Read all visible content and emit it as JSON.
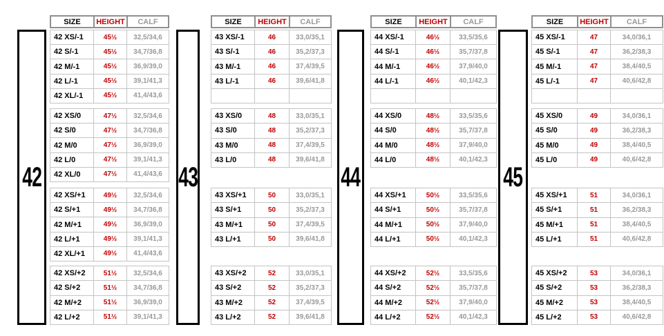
{
  "table_header": {
    "size": "SIZE",
    "height": "HEIGHT",
    "calf": "CALF"
  },
  "colors": {
    "height_text": "#c00000",
    "calf_text": "#999999",
    "cell_border": "#c3c3c3",
    "header_border": "#8f8f8f",
    "box_border": "#000000"
  },
  "blocks": [
    {
      "number": "42",
      "sections": [
        {
          "rows": [
            {
              "size": "42 XS/-1",
              "height": "45½",
              "calf": "32,5/34,6"
            },
            {
              "size": "42 S/-1",
              "height": "45½",
              "calf": "34,7/36,8"
            },
            {
              "size": "42 M/-1",
              "height": "45½",
              "calf": "36,9/39,0"
            },
            {
              "size": "42 L/-1",
              "height": "45½",
              "calf": "39,1/41,3"
            },
            {
              "size": "42 XL/-1",
              "height": "45½",
              "calf": "41,4/43,6"
            }
          ]
        },
        {
          "rows": [
            {
              "size": "42 XS/0",
              "height": "47½",
              "calf": "32,5/34,6"
            },
            {
              "size": "42 S/0",
              "height": "47½",
              "calf": "34,7/36,8"
            },
            {
              "size": "42 M/0",
              "height": "47½",
              "calf": "36,9/39,0"
            },
            {
              "size": "42 L/0",
              "height": "47½",
              "calf": "39,1/41,3"
            },
            {
              "size": "42 XL/0",
              "height": "47½",
              "calf": "41,4/43,6"
            }
          ]
        },
        {
          "rows": [
            {
              "size": "42 XS/+1",
              "height": "49½",
              "calf": "32,5/34,6"
            },
            {
              "size": "42 S/+1",
              "height": "49½",
              "calf": "34,7/36,8"
            },
            {
              "size": "42 M/+1",
              "height": "49½",
              "calf": "36,9/39,0"
            },
            {
              "size": "42 L/+1",
              "height": "49½",
              "calf": "39,1/41,3"
            },
            {
              "size": "42 XL/+1",
              "height": "49½",
              "calf": "41,4/43,6"
            }
          ]
        },
        {
          "rows": [
            {
              "size": "42 XS/+2",
              "height": "51½",
              "calf": "32,5/34,6"
            },
            {
              "size": "42 S/+2",
              "height": "51½",
              "calf": "34,7/36,8"
            },
            {
              "size": "42 M/+2",
              "height": "51½",
              "calf": "36,9/39,0"
            },
            {
              "size": "42 L/+2",
              "height": "51½",
              "calf": "39,1/41,3"
            }
          ]
        }
      ]
    },
    {
      "number": "43",
      "sections": [
        {
          "rows": [
            {
              "size": "43 XS/-1",
              "height": "46",
              "calf": "33,0/35,1"
            },
            {
              "size": "43 S/-1",
              "height": "46",
              "calf": "35,2/37,3"
            },
            {
              "size": "43 M/-1",
              "height": "46",
              "calf": "37,4/39,5"
            },
            {
              "size": "43 L/-1",
              "height": "46",
              "calf": "39,6/41,8"
            },
            {
              "size": "",
              "height": "",
              "calf": ""
            }
          ]
        },
        {
          "rows": [
            {
              "size": "43 XS/0",
              "height": "48",
              "calf": "33,0/35,1"
            },
            {
              "size": "43 S/0",
              "height": "48",
              "calf": "35,2/37,3"
            },
            {
              "size": "43 M/0",
              "height": "48",
              "calf": "37,4/39,5"
            },
            {
              "size": "43 L/0",
              "height": "48",
              "calf": "39,6/41,8"
            }
          ]
        },
        {
          "rows": [
            {
              "size": "43 XS/+1",
              "height": "50",
              "calf": "33,0/35,1"
            },
            {
              "size": "43 S/+1",
              "height": "50",
              "calf": "35,2/37,3"
            },
            {
              "size": "43 M/+1",
              "height": "50",
              "calf": "37,4/39,5"
            },
            {
              "size": "43 L/+1",
              "height": "50",
              "calf": "39,6/41,8"
            }
          ]
        },
        {
          "rows": [
            {
              "size": "43 XS/+2",
              "height": "52",
              "calf": "33,0/35,1"
            },
            {
              "size": "43 S/+2",
              "height": "52",
              "calf": "35,2/37,3"
            },
            {
              "size": "43 M/+2",
              "height": "52",
              "calf": "37,4/39,5"
            },
            {
              "size": "43 L/+2",
              "height": "52",
              "calf": "39,6/41,8"
            }
          ]
        }
      ]
    },
    {
      "number": "44",
      "sections": [
        {
          "rows": [
            {
              "size": "44 XS/-1",
              "height": "46½",
              "calf": "33,5/35,6"
            },
            {
              "size": "44 S/-1",
              "height": "46½",
              "calf": "35,7/37,8"
            },
            {
              "size": "44 M/-1",
              "height": "46½",
              "calf": "37,9/40,0"
            },
            {
              "size": "44 L/-1",
              "height": "46½",
              "calf": "40,1/42,3"
            },
            {
              "size": "",
              "height": "",
              "calf": ""
            }
          ]
        },
        {
          "rows": [
            {
              "size": "44 XS/0",
              "height": "48½",
              "calf": "33,5/35,6"
            },
            {
              "size": "44 S/0",
              "height": "48½",
              "calf": "35,7/37,8"
            },
            {
              "size": "44 M/0",
              "height": "48½",
              "calf": "37,9/40,0"
            },
            {
              "size": "44 L/0",
              "height": "48½",
              "calf": "40,1/42,3"
            }
          ]
        },
        {
          "rows": [
            {
              "size": "44 XS/+1",
              "height": "50½",
              "calf": "33,5/35,6"
            },
            {
              "size": "44 S/+1",
              "height": "50½",
              "calf": "35,7/37,8"
            },
            {
              "size": "44 M/+1",
              "height": "50½",
              "calf": "37,9/40,0"
            },
            {
              "size": "44 L/+1",
              "height": "50½",
              "calf": "40,1/42,3"
            }
          ]
        },
        {
          "rows": [
            {
              "size": "44 XS/+2",
              "height": "52½",
              "calf": "33,5/35,6"
            },
            {
              "size": "44 S/+2",
              "height": "52½",
              "calf": "35,7/37,8"
            },
            {
              "size": "44 M/+2",
              "height": "52½",
              "calf": "37,9/40,0"
            },
            {
              "size": "44 L/+2",
              "height": "52½",
              "calf": "40,1/42,3"
            }
          ]
        }
      ]
    },
    {
      "number": "45",
      "sections": [
        {
          "rows": [
            {
              "size": "45 XS/-1",
              "height": "47",
              "calf": "34,0/36,1"
            },
            {
              "size": "45 S/-1",
              "height": "47",
              "calf": "36,2/38,3"
            },
            {
              "size": "45 M/-1",
              "height": "47",
              "calf": "38,4/40,5"
            },
            {
              "size": "45 L/-1",
              "height": "47",
              "calf": "40,6/42,8"
            },
            {
              "size": "",
              "height": "",
              "calf": ""
            }
          ]
        },
        {
          "rows": [
            {
              "size": "45 XS/0",
              "height": "49",
              "calf": "34,0/36,1"
            },
            {
              "size": "45 S/0",
              "height": "49",
              "calf": "36,2/38,3"
            },
            {
              "size": "45 M/0",
              "height": "49",
              "calf": "38,4/40,5"
            },
            {
              "size": "45 L/0",
              "height": "49",
              "calf": "40,6/42,8"
            }
          ]
        },
        {
          "rows": [
            {
              "size": "45 XS/+1",
              "height": "51",
              "calf": "34,0/36,1"
            },
            {
              "size": "45 S/+1",
              "height": "51",
              "calf": "36,2/38,3"
            },
            {
              "size": "45 M/+1",
              "height": "51",
              "calf": "38,4/40,5"
            },
            {
              "size": "45 L/+1",
              "height": "51",
              "calf": "40,6/42,8"
            }
          ]
        },
        {
          "rows": [
            {
              "size": "45 XS/+2",
              "height": "53",
              "calf": "34,0/36,1"
            },
            {
              "size": "45 S/+2",
              "height": "53",
              "calf": "36,2/38,3"
            },
            {
              "size": "45 M/+2",
              "height": "53",
              "calf": "38,4/40,5"
            },
            {
              "size": "45 L/+2",
              "height": "53",
              "calf": "40,6/42,8"
            }
          ]
        }
      ]
    }
  ]
}
